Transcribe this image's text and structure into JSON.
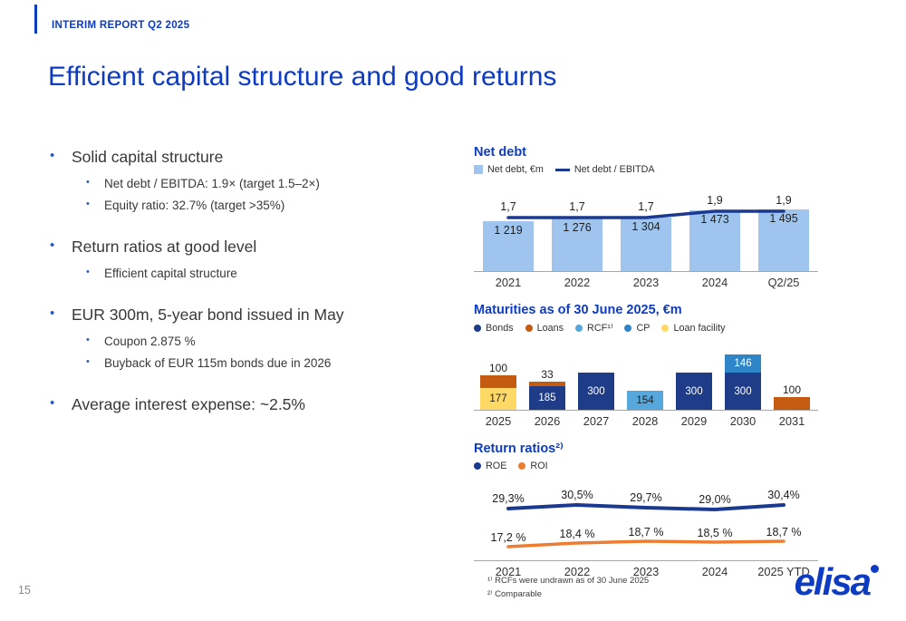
{
  "slide": {
    "eyebrow": "INTERIM REPORT Q2 2025",
    "title": "Efficient capital structure and good returns",
    "page_number": "15",
    "logo_text": "elisa"
  },
  "bullets": [
    {
      "text": "Solid capital structure",
      "subs": [
        "Net debt / EBITDA: 1.9× (target 1.5–2×)",
        "Equity ratio: 32.7% (target >35%)"
      ]
    },
    {
      "text": "Return ratios at good level",
      "subs": [
        "Efficient capital structure"
      ]
    },
    {
      "text": "EUR 300m, 5-year bond issued in May",
      "subs": [
        "Coupon 2.875 %",
        "Buyback of EUR 115m bonds due in 2026"
      ]
    },
    {
      "text": "Average interest expense: ~2.5%",
      "subs": []
    }
  ],
  "footnotes": [
    "¹⁾ RCFs were undrawn as of 30 June 2025",
    "²⁾ Comparable"
  ],
  "colors": {
    "brand_blue": "#0d3bc1",
    "bar_light_blue": "#9FC5EF",
    "line_navy": "#1b3a8f",
    "bonds": "#1e3c87",
    "loans": "#C55A11",
    "rcf": "#56A7DC",
    "cp": "#2E86C9",
    "loan_facility": "#FFD966",
    "roe": "#1b3a8f",
    "roi": "#ED7D31",
    "axis": "#a6a6a6",
    "bullet_blue": "#2f5bc0"
  },
  "chart_data": [
    {
      "type": "bar",
      "title": "Net debt",
      "categories": [
        "2021",
        "2022",
        "2023",
        "2024",
        "Q2/25"
      ],
      "legend": [
        {
          "label": "Net debt, €m",
          "marker": "square",
          "color": "bar_light_blue"
        },
        {
          "label": "Net debt / EBITDA",
          "marker": "line",
          "color": "line_navy"
        }
      ],
      "series": [
        {
          "name": "Net debt, €m",
          "type": "bar",
          "values": [
            1219,
            1276,
            1304,
            1473,
            1495
          ],
          "labels": [
            "1 219",
            "1 276",
            "1 304",
            "1 473",
            "1 495"
          ]
        },
        {
          "name": "Net debt / EBITDA",
          "type": "line",
          "values": [
            1.7,
            1.7,
            1.7,
            1.9,
            1.9
          ],
          "labels": [
            "1,7",
            "1,7",
            "1,7",
            "1,9",
            "1,9"
          ]
        }
      ]
    },
    {
      "type": "bar",
      "subtype": "stacked",
      "title": "Maturities as of 30 June 2025, €m",
      "categories": [
        "2025",
        "2026",
        "2027",
        "2028",
        "2029",
        "2030",
        "2031"
      ],
      "legend": [
        {
          "label": "Bonds",
          "marker": "dot",
          "color": "bonds"
        },
        {
          "label": "Loans",
          "marker": "dot",
          "color": "loans"
        },
        {
          "label": "RCF¹⁾",
          "marker": "dot",
          "color": "rcf"
        },
        {
          "label": "CP",
          "marker": "dot",
          "color": "cp"
        },
        {
          "label": "Loan facility",
          "marker": "dot",
          "color": "loan_facility"
        }
      ],
      "columns": [
        {
          "year": "2025",
          "above_label": "100",
          "segments": [
            {
              "key": "loans",
              "value": 100,
              "label": "",
              "text": "light"
            },
            {
              "key": "loan_facility",
              "value": 177,
              "label": "177",
              "text": "dark"
            }
          ]
        },
        {
          "year": "2026",
          "above_label": "33",
          "segments": [
            {
              "key": "loans",
              "value": 33,
              "label": "",
              "text": "light"
            },
            {
              "key": "bonds",
              "value": 185,
              "label": "185",
              "text": "light"
            }
          ]
        },
        {
          "year": "2027",
          "segments": [
            {
              "key": "bonds",
              "value": 300,
              "label": "300",
              "text": "light"
            }
          ]
        },
        {
          "year": "2028",
          "segments": [
            {
              "key": "rcf",
              "value": 154,
              "label": "154",
              "text": "dark"
            }
          ]
        },
        {
          "year": "2029",
          "segments": [
            {
              "key": "bonds",
              "value": 300,
              "label": "300",
              "text": "light"
            }
          ]
        },
        {
          "year": "2030",
          "segments": [
            {
              "key": "cp",
              "value": 146,
              "label": "146",
              "text": "light"
            },
            {
              "key": "bonds",
              "value": 300,
              "label": "300",
              "text": "light"
            }
          ]
        },
        {
          "year": "2031",
          "above_label": "100",
          "segments": [
            {
              "key": "loans",
              "value": 100,
              "label": "",
              "text": "light"
            }
          ]
        }
      ]
    },
    {
      "type": "line",
      "title": "Return ratios²⁾",
      "categories": [
        "2021",
        "2022",
        "2023",
        "2024",
        "2025 YTD"
      ],
      "legend": [
        {
          "label": "ROE",
          "marker": "dot",
          "color": "roe"
        },
        {
          "label": "ROI",
          "marker": "dot",
          "color": "roi"
        }
      ],
      "series": [
        {
          "name": "ROE",
          "color": "roe",
          "values": [
            29.3,
            30.5,
            29.7,
            29.0,
            30.4
          ],
          "labels": [
            "29,3%",
            "30,5%",
            "29,7%",
            "29,0%",
            "30,4%"
          ]
        },
        {
          "name": "ROI",
          "color": "roi",
          "values": [
            17.2,
            18.4,
            18.7,
            18.5,
            18.7
          ],
          "labels": [
            "17,2 %",
            "18,4 %",
            "18,7 %",
            "18,5 %",
            "18,7 %"
          ]
        }
      ]
    }
  ]
}
